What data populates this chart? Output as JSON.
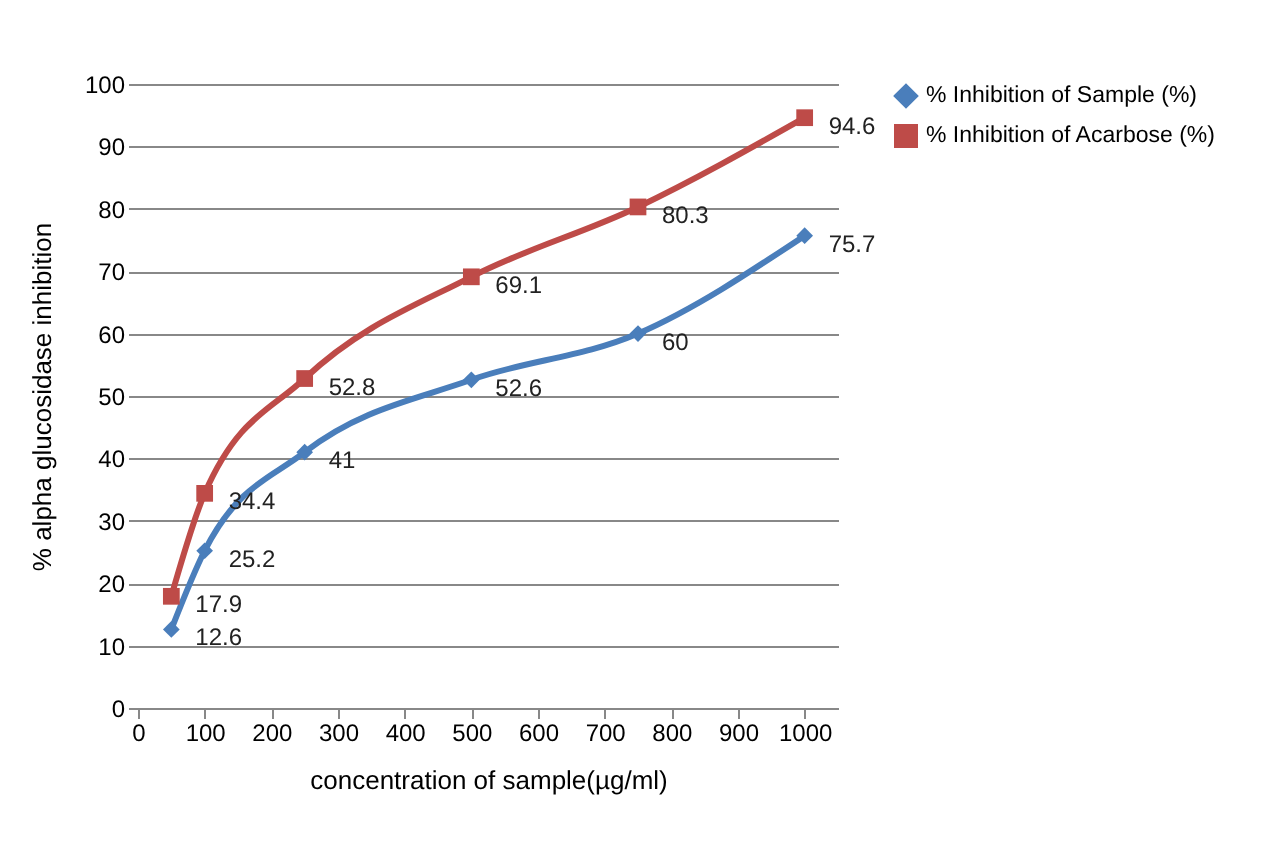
{
  "chart_data": {
    "type": "line",
    "xlabel": "concentration of sample(µg/ml)",
    "ylabel": "% alpha glucosidase inhibition",
    "x": [
      50,
      100,
      250,
      500,
      750,
      1000
    ],
    "series": [
      {
        "name": "% Inhibition of Sample (%)",
        "color": "#4a7ebb",
        "marker": "diamond",
        "values": [
          12.6,
          25.2,
          41,
          52.6,
          60,
          75.7
        ]
      },
      {
        "name": "% Inhibition of Acarbose (%)",
        "color": "#be4b48",
        "marker": "square",
        "values": [
          17.9,
          34.4,
          52.8,
          69.1,
          80.3,
          94.6
        ]
      }
    ],
    "xlim": [
      0,
      1050
    ],
    "xticks": [
      0,
      100,
      200,
      300,
      400,
      500,
      600,
      700,
      800,
      900,
      1000
    ],
    "ylim": [
      0,
      100
    ],
    "yticks": [
      0,
      10,
      20,
      30,
      40,
      50,
      60,
      70,
      80,
      90,
      100
    ],
    "grid": "y",
    "legend": "right",
    "data_labels": true,
    "line_style": "solid"
  }
}
